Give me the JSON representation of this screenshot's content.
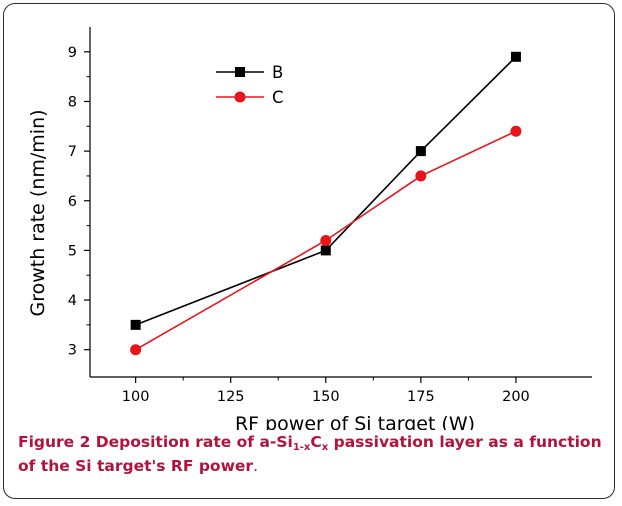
{
  "chart_data": {
    "type": "line",
    "xlabel": "RF power of Si target (W)",
    "ylabel": "Growth rate (nm/min)",
    "xlim": [
      88,
      220
    ],
    "ylim": [
      2.45,
      9.5
    ],
    "x_ticks": [
      100,
      125,
      150,
      175,
      200
    ],
    "y_ticks": [
      3,
      4,
      5,
      6,
      7,
      8,
      9
    ],
    "grid": false,
    "legend_position": "top-left",
    "series": [
      {
        "name": "B",
        "marker": "square",
        "color": "#000000",
        "x": [
          100,
          150,
          175,
          200
        ],
        "y": [
          3.5,
          5.0,
          7.0,
          8.9
        ]
      },
      {
        "name": "C",
        "marker": "circle",
        "color": "#e8141c",
        "x": [
          100,
          150,
          175,
          200
        ],
        "y": [
          3.0,
          5.2,
          6.5,
          7.4
        ]
      }
    ]
  },
  "caption": {
    "lead": "Figure 2",
    "text_before": " Deposition rate of a-Si",
    "sub1": "1-x",
    "text_mid": "C",
    "sub2": "x",
    "text_after": " passivation layer as a function of the Si target's RF power",
    "tail": "."
  }
}
